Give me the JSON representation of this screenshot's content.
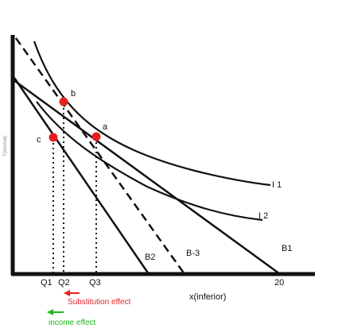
{
  "diagram": {
    "y_axis_label": "Y(normal)",
    "x_axis_label": "x(inferior)",
    "x_intercept_value": "20",
    "indifference_curves": [
      "I 1",
      "I 2"
    ],
    "budget_lines": [
      "B1",
      "B2",
      "B-3"
    ],
    "points": [
      "b",
      "a",
      "c"
    ],
    "quantities": [
      "Q1",
      "Q2",
      "Q3"
    ],
    "effects": {
      "substitution": {
        "label": "Substitution effect",
        "color": "#e52020"
      },
      "income": {
        "label": "income effect",
        "color": "#1fb81f"
      }
    },
    "point_color": "#e52020",
    "line_color": "#111111"
  }
}
